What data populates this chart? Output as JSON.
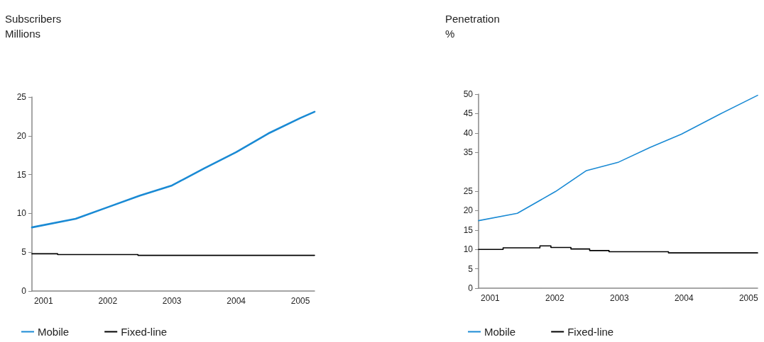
{
  "chart_data": [
    {
      "type": "line",
      "title": "Subscribers",
      "ylabel": "Millions",
      "xlim": [
        2000.82,
        2005.22
      ],
      "xticks": [
        2001,
        2002,
        2003,
        2004,
        2005
      ],
      "ylim": [
        0,
        25
      ],
      "yticks": [
        0,
        5,
        10,
        15,
        20,
        25
      ],
      "grid": false,
      "legend": "bottom left",
      "marker": "none",
      "series": [
        {
          "name": "Mobile",
          "color": "#1a8ad4",
          "x": [
            2000.82,
            2001.5,
            2002,
            2002.5,
            2003,
            2003.5,
            2004,
            2004.5,
            2005,
            2005.22
          ],
          "values": [
            8.2,
            9.3,
            10.8,
            12.3,
            13.6,
            15.8,
            17.9,
            20.3,
            22.3,
            23.1
          ]
        },
        {
          "name": "Fixed-line",
          "type": "step",
          "color": "#000000",
          "x": [
            2000.82,
            2001.22,
            2002.47,
            2005.22
          ],
          "values": [
            4.8,
            4.7,
            4.6,
            4.6
          ]
        }
      ]
    },
    {
      "type": "line",
      "title": "Penetration",
      "ylabel": "%",
      "xlim": [
        2000.82,
        2005.14
      ],
      "xticks": [
        2001,
        2002,
        2003,
        2004,
        2005
      ],
      "ylim": [
        0,
        50
      ],
      "yticks": [
        0,
        5,
        10,
        15,
        20,
        25,
        35,
        40,
        45,
        50
      ],
      "grid": false,
      "legend": "bottom left",
      "marker": "none",
      "series": [
        {
          "name": "Mobile",
          "color": "#1a8ad4",
          "x": [
            2000.82,
            2001.42,
            2002.01,
            2002.49,
            2002.99,
            2003.48,
            2003.96,
            2004.55,
            2005.14
          ],
          "values": [
            17.4,
            19.3,
            24.9,
            30.3,
            32.5,
            36.3,
            39.7,
            44.8,
            49.7
          ]
        },
        {
          "name": "Fixed-line",
          "type": "step",
          "color": "#000000",
          "x": [
            2000.82,
            2001.2,
            2001.77,
            2001.94,
            2002.25,
            2002.54,
            2002.84,
            2003.76,
            2005.14
          ],
          "values": [
            10.0,
            10.4,
            10.9,
            10.5,
            10.1,
            9.7,
            9.4,
            9.1,
            9.1
          ]
        }
      ]
    }
  ]
}
